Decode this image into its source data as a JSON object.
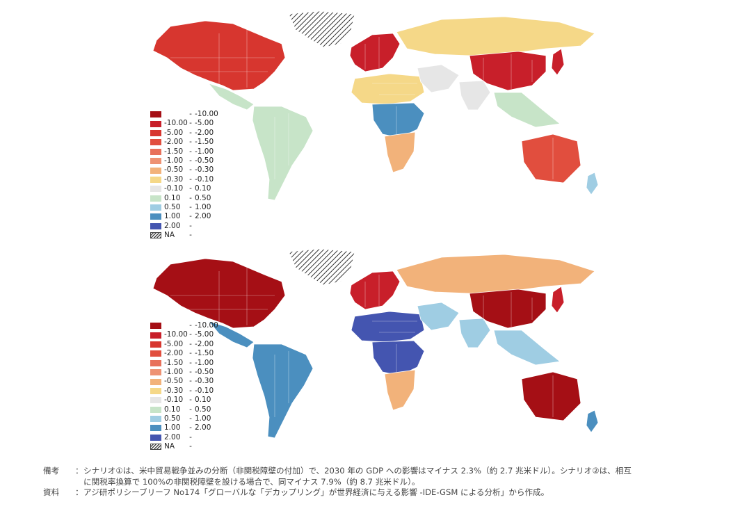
{
  "legend": {
    "items": [
      {
        "low": "",
        "high": "-10.00",
        "color": "#a50f15"
      },
      {
        "low": "-10.00",
        "high": "-5.00",
        "color": "#c81f2a"
      },
      {
        "low": "-5.00",
        "high": "-2.00",
        "color": "#d7362f"
      },
      {
        "low": "-2.00",
        "high": "-1.50",
        "color": "#e14e3e"
      },
      {
        "low": "-1.50",
        "high": "-1.00",
        "color": "#e8705a"
      },
      {
        "low": "-1.00",
        "high": "-0.50",
        "color": "#ee9273"
      },
      {
        "low": "-0.50",
        "high": "-0.30",
        "color": "#f2b27a"
      },
      {
        "low": "-0.30",
        "high": "-0.10",
        "color": "#f5d888"
      },
      {
        "low": "-0.10",
        "high": "0.10",
        "color": "#e6e6e6"
      },
      {
        "low": "0.10",
        "high": "0.50",
        "color": "#c7e4c8"
      },
      {
        "low": "0.50",
        "high": "1.00",
        "color": "#9fcde3"
      },
      {
        "low": "1.00",
        "high": "2.00",
        "color": "#4b8fbf"
      },
      {
        "low": "2.00",
        "high": "",
        "color": "#4455b0"
      },
      {
        "low": "NA",
        "high": "",
        "color": "hatch"
      }
    ]
  },
  "map1_colors": {
    "north_america": "#d7362f",
    "greenland": "hatch",
    "central_america": "#c7e4c8",
    "south_america": "#c7e4c8",
    "europe": "#c81f2a",
    "russia": "#f5d888",
    "africa_north": "#f5d888",
    "africa_central": "#4b8fbf",
    "africa_south": "#f2b27a",
    "middle_east": "#e6e6e6",
    "south_asia": "#e6e6e6",
    "china": "#c81f2a",
    "southeast_asia": "#c7e4c8",
    "japan": "#c81f2a",
    "australia": "#e14e3e",
    "nz": "#9fcde3"
  },
  "map2_colors": {
    "north_america": "#a50f15",
    "greenland": "hatch",
    "central_america": "#4b8fbf",
    "south_america": "#4b8fbf",
    "europe": "#c81f2a",
    "russia": "#f2b27a",
    "africa_north": "#4455b0",
    "africa_central": "#4455b0",
    "africa_south": "#f2b27a",
    "middle_east": "#9fcde3",
    "south_asia": "#9fcde3",
    "china": "#a50f15",
    "southeast_asia": "#9fcde3",
    "japan": "#c81f2a",
    "australia": "#a50f15",
    "nz": "#4b8fbf"
  },
  "notes": {
    "remarks_head": "備考",
    "remarks_line1": "シナリオ①は、米中貿易戦争並みの分断（非関税障壁の付加）で、2030 年の GDP への影響はマイナス 2.3%（約 2.7 兆米ドル）。シナリオ②は、相互",
    "remarks_line2": "に関税率換算で 100%の非関税障壁を設ける場合で、同マイナス 7.9%（約 8.7 兆米ドル）。",
    "source_head": "資料",
    "source_text": "アジ研ポリシーブリーフ No174「グローバルな「デカップリング」が世界経済に与える影響 -IDE-GSM による分析」から作成。"
  }
}
